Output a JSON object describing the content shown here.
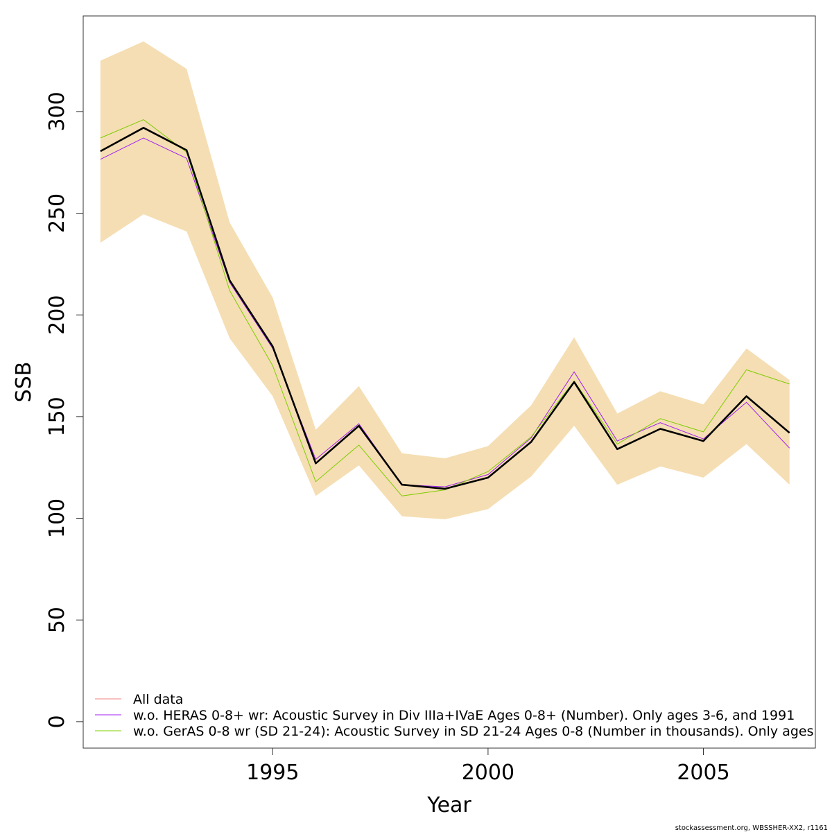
{
  "chart_data": {
    "type": "line",
    "title": "",
    "xlabel": "Year",
    "ylabel": "SSB",
    "xlim": [
      1990.6,
      2007.6
    ],
    "ylim": [
      -13,
      347
    ],
    "x_ticks": [
      1995,
      2000,
      2005
    ],
    "y_ticks": [
      0,
      50,
      100,
      150,
      200,
      250,
      300
    ],
    "x_tick_labels": [
      "1995",
      "2000",
      "2005"
    ],
    "y_tick_labels": [
      "0",
      "50",
      "100",
      "150",
      "200",
      "250",
      "300"
    ],
    "grid": false,
    "legend_position": "bottom-left",
    "x": [
      1991,
      1992,
      1993,
      1994,
      1995,
      1996,
      1997,
      1998,
      1999,
      2000,
      2001,
      2002,
      2003,
      2004,
      2005,
      2006,
      2007
    ],
    "band": {
      "color": "#f5deb3",
      "lower": [
        235.5,
        249.5,
        241,
        188.5,
        160,
        111,
        126,
        101,
        99.5,
        104.5,
        120.5,
        145.5,
        116.5,
        125.5,
        120,
        136.5,
        116.5
      ],
      "upper": [
        325,
        334.5,
        321,
        245.5,
        208.5,
        143.5,
        165,
        132,
        129.5,
        135.5,
        155.5,
        189,
        151.5,
        162.5,
        156,
        183.5,
        168
      ]
    },
    "main_line": {
      "color": "#000000",
      "values": [
        280.5,
        292,
        281,
        217,
        184.5,
        127,
        145.5,
        116.5,
        114.5,
        120,
        137.5,
        167,
        134,
        144,
        138,
        160,
        142
      ]
    },
    "series": [
      {
        "name": "All data",
        "color": "#f08080",
        "values": [
          280.5,
          292,
          281,
          217,
          184.5,
          127,
          145.5,
          116.5,
          114.5,
          120,
          137.5,
          167,
          134,
          144,
          138,
          160,
          142
        ]
      },
      {
        "name": "w.o. HERAS 0-8+ wr: Acoustic Survey in Div IIIa+IVaE Ages 0-8+ (Number). Only ages 3-6, and 1991",
        "color": "#a020f0",
        "values": [
          276.5,
          287,
          277,
          216,
          183.5,
          129,
          146.5,
          116.5,
          115.5,
          121.5,
          139.5,
          172,
          138,
          147,
          139,
          157,
          134.5
        ]
      },
      {
        "name": "w.o. GerAS 0-8 wr (SD 21-24): Acoustic Survey in SD 21-24 Ages 0-8 (Number in thousands). Only ages",
        "color": "#7fcc00",
        "values": [
          287,
          296,
          280,
          212,
          175,
          118,
          136,
          111,
          114,
          123,
          140,
          167.5,
          136.5,
          149,
          142.5,
          173,
          166
        ]
      }
    ]
  },
  "footer": {
    "credit": "stockassessment.org, WBSSHER-XX2, r1161"
  }
}
